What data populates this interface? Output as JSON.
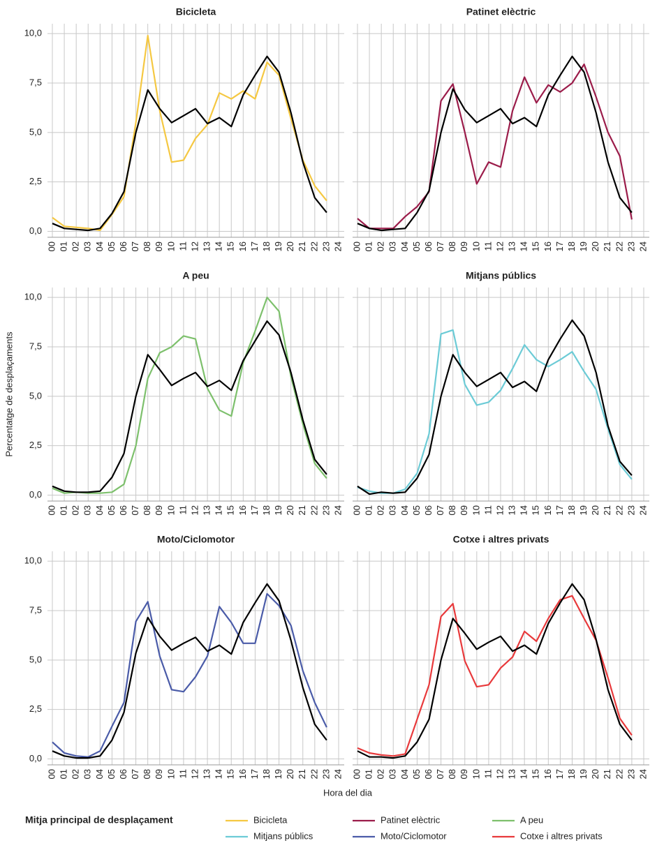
{
  "y_label": "Percentatge de desplaçaments",
  "x_label": "Hora del dia",
  "legend_title": "Mitja principal de desplaçament",
  "chart_data": [
    {
      "type": "line",
      "title": "Bicicleta",
      "categories": [
        "00",
        "01",
        "02",
        "03",
        "04",
        "05",
        "06",
        "07",
        "08",
        "09",
        "10",
        "11",
        "12",
        "13",
        "14",
        "15",
        "16",
        "17",
        "18",
        "19",
        "20",
        "21",
        "22",
        "23",
        "24"
      ],
      "ylim": [
        -0.3,
        10.5
      ],
      "yticks": [
        {
          "value": 0,
          "label": "0,0"
        },
        {
          "value": 2.5,
          "label": "2,5"
        },
        {
          "value": 5,
          "label": "5,0"
        },
        {
          "value": 7.5,
          "label": "7,5"
        },
        {
          "value": 10,
          "label": "10,0"
        }
      ],
      "grid": true,
      "series": [
        {
          "color": "#000000",
          "values": [
            0.4,
            0.15,
            0.1,
            0.05,
            0.15,
            0.9,
            2.0,
            5.0,
            7.15,
            6.2,
            5.5,
            5.85,
            6.2,
            5.45,
            5.75,
            5.3,
            6.9,
            7.9,
            8.85,
            8.05,
            6.0,
            3.5,
            1.7,
            0.95,
            null
          ]
        },
        {
          "name": "Bicicleta",
          "color": "#f5c842",
          "values": [
            0.7,
            0.25,
            0.2,
            0.15,
            0.05,
            0.85,
            1.75,
            5.5,
            9.9,
            6.1,
            3.5,
            3.6,
            4.7,
            5.4,
            7.0,
            6.7,
            7.1,
            6.7,
            8.55,
            7.9,
            5.7,
            3.6,
            2.3,
            1.55,
            null
          ]
        }
      ]
    },
    {
      "type": "line",
      "title": "Patinet elèctric",
      "categories": [
        "00",
        "01",
        "02",
        "03",
        "04",
        "05",
        "06",
        "07",
        "08",
        "09",
        "10",
        "11",
        "12",
        "13",
        "14",
        "15",
        "16",
        "17",
        "18",
        "19",
        "20",
        "21",
        "22",
        "23",
        "24"
      ],
      "ylim": [
        -0.3,
        10.5
      ],
      "yticks": [
        {
          "value": 0,
          "label": "0,0"
        },
        {
          "value": 2.5,
          "label": "2,5"
        },
        {
          "value": 5,
          "label": "5,0"
        },
        {
          "value": 7.5,
          "label": "7,5"
        },
        {
          "value": 10,
          "label": "10,0"
        }
      ],
      "grid": true,
      "series": [
        {
          "color": "#000000",
          "values": [
            0.4,
            0.15,
            0.05,
            0.1,
            0.15,
            0.95,
            2.05,
            5.0,
            7.2,
            6.15,
            5.5,
            5.85,
            6.2,
            5.45,
            5.75,
            5.3,
            6.9,
            7.9,
            8.85,
            8.05,
            6.0,
            3.5,
            1.7,
            0.95,
            null
          ]
        },
        {
          "name": "Patinet elèctric",
          "color": "#9b1c4a",
          "values": [
            0.65,
            0.15,
            0.15,
            0.15,
            0.75,
            1.25,
            2.0,
            6.6,
            7.45,
            5.0,
            2.4,
            3.5,
            3.25,
            6.1,
            7.8,
            6.5,
            7.4,
            7.05,
            7.5,
            8.45,
            6.8,
            5.0,
            3.8,
            0.6,
            null
          ]
        }
      ]
    },
    {
      "type": "line",
      "title": "A peu",
      "categories": [
        "00",
        "01",
        "02",
        "03",
        "04",
        "05",
        "06",
        "07",
        "08",
        "09",
        "10",
        "11",
        "12",
        "13",
        "14",
        "15",
        "16",
        "17",
        "18",
        "19",
        "20",
        "21",
        "22",
        "23",
        "24"
      ],
      "ylim": [
        -0.3,
        10.5
      ],
      "yticks": [
        {
          "value": 0,
          "label": "0,0"
        },
        {
          "value": 2.5,
          "label": "2,5"
        },
        {
          "value": 5,
          "label": "5,0"
        },
        {
          "value": 7.5,
          "label": "7,5"
        },
        {
          "value": 10,
          "label": "10,0"
        }
      ],
      "grid": true,
      "series": [
        {
          "color": "#000000",
          "values": [
            0.45,
            0.2,
            0.15,
            0.15,
            0.2,
            0.9,
            2.1,
            5.0,
            7.1,
            6.35,
            5.55,
            5.9,
            6.2,
            5.5,
            5.8,
            5.3,
            6.8,
            7.8,
            8.8,
            8.1,
            6.2,
            3.8,
            1.8,
            1.05,
            null
          ]
        },
        {
          "name": "A peu",
          "color": "#7dc06c",
          "values": [
            0.35,
            0.1,
            0.15,
            0.1,
            0.1,
            0.15,
            0.55,
            2.5,
            5.9,
            7.2,
            7.5,
            8.05,
            7.9,
            5.4,
            4.3,
            4.0,
            6.7,
            8.3,
            10.0,
            9.3,
            6.0,
            3.6,
            1.6,
            0.85,
            null
          ]
        }
      ]
    },
    {
      "type": "line",
      "title": "Mitjans públics",
      "categories": [
        "00",
        "01",
        "02",
        "03",
        "04",
        "05",
        "06",
        "07",
        "08",
        "09",
        "10",
        "11",
        "12",
        "13",
        "14",
        "15",
        "16",
        "17",
        "18",
        "19",
        "20",
        "21",
        "22",
        "23",
        "24"
      ],
      "ylim": [
        -0.3,
        10.5
      ],
      "yticks": [
        {
          "value": 0,
          "label": "0,0"
        },
        {
          "value": 2.5,
          "label": "2,5"
        },
        {
          "value": 5,
          "label": "5,0"
        },
        {
          "value": 7.5,
          "label": "7,5"
        },
        {
          "value": 10,
          "label": "10,0"
        }
      ],
      "grid": true,
      "series": [
        {
          "color": "#000000",
          "values": [
            0.45,
            0.05,
            0.15,
            0.1,
            0.15,
            0.85,
            2.05,
            5.0,
            7.1,
            6.2,
            5.5,
            5.85,
            6.2,
            5.45,
            5.75,
            5.25,
            6.85,
            7.9,
            8.85,
            8.05,
            6.2,
            3.5,
            1.7,
            1.0,
            null
          ]
        },
        {
          "name": "Mitjans públics",
          "color": "#6ccbd6",
          "values": [
            0.4,
            0.2,
            0.1,
            0.1,
            0.3,
            1.1,
            3.1,
            8.15,
            8.35,
            5.6,
            4.55,
            4.7,
            5.3,
            6.4,
            7.6,
            6.85,
            6.5,
            6.85,
            7.25,
            6.25,
            5.35,
            3.35,
            1.55,
            0.8,
            null
          ]
        }
      ]
    },
    {
      "type": "line",
      "title": "Moto/Ciclomotor",
      "categories": [
        "00",
        "01",
        "02",
        "03",
        "04",
        "05",
        "06",
        "07",
        "08",
        "09",
        "10",
        "11",
        "12",
        "13",
        "14",
        "15",
        "16",
        "17",
        "18",
        "19",
        "20",
        "21",
        "22",
        "23",
        "24"
      ],
      "ylim": [
        -0.3,
        10.5
      ],
      "yticks": [
        {
          "value": 0,
          "label": "0,0"
        },
        {
          "value": 2.5,
          "label": "2,5"
        },
        {
          "value": 5,
          "label": "5,0"
        },
        {
          "value": 7.5,
          "label": "7,5"
        },
        {
          "value": 10,
          "label": "10,0"
        }
      ],
      "grid": true,
      "series": [
        {
          "color": "#000000",
          "values": [
            0.4,
            0.15,
            0.05,
            0.05,
            0.15,
            0.95,
            2.35,
            5.35,
            7.15,
            6.2,
            5.5,
            5.85,
            6.15,
            5.45,
            5.75,
            5.3,
            6.9,
            7.9,
            8.85,
            8.0,
            6.0,
            3.6,
            1.75,
            0.95,
            null
          ]
        },
        {
          "name": "Moto/Ciclomotor",
          "color": "#4a5ba8",
          "values": [
            0.85,
            0.3,
            0.15,
            0.1,
            0.4,
            1.65,
            2.85,
            6.95,
            7.95,
            5.2,
            3.5,
            3.4,
            4.15,
            5.2,
            7.7,
            6.9,
            5.85,
            5.85,
            8.35,
            7.75,
            6.75,
            4.45,
            2.85,
            1.6,
            null
          ]
        }
      ]
    },
    {
      "type": "line",
      "title": "Cotxe i altres privats",
      "categories": [
        "00",
        "01",
        "02",
        "03",
        "04",
        "05",
        "06",
        "07",
        "08",
        "09",
        "10",
        "11",
        "12",
        "13",
        "14",
        "15",
        "16",
        "17",
        "18",
        "19",
        "20",
        "21",
        "22",
        "23",
        "24"
      ],
      "ylim": [
        -0.3,
        10.5
      ],
      "yticks": [
        {
          "value": 0,
          "label": "0,0"
        },
        {
          "value": 2.5,
          "label": "2,5"
        },
        {
          "value": 5,
          "label": "5,0"
        },
        {
          "value": 7.5,
          "label": "7,5"
        },
        {
          "value": 10,
          "label": "10,0"
        }
      ],
      "grid": true,
      "series": [
        {
          "color": "#000000",
          "values": [
            0.4,
            0.1,
            0.1,
            0.05,
            0.15,
            0.85,
            2.0,
            5.0,
            7.1,
            6.35,
            5.55,
            5.9,
            6.2,
            5.45,
            5.75,
            5.3,
            6.85,
            7.9,
            8.85,
            8.05,
            6.05,
            3.5,
            1.75,
            0.95,
            null
          ]
        },
        {
          "name": "Cotxe i altres privats",
          "color": "#e8393b",
          "values": [
            0.55,
            0.3,
            0.2,
            0.15,
            0.25,
            2.0,
            3.75,
            7.2,
            7.85,
            4.95,
            3.65,
            3.75,
            4.6,
            5.15,
            6.45,
            5.95,
            7.1,
            8.05,
            8.25,
            7.1,
            6.0,
            4.1,
            2.05,
            1.2,
            null
          ]
        }
      ]
    }
  ]
}
